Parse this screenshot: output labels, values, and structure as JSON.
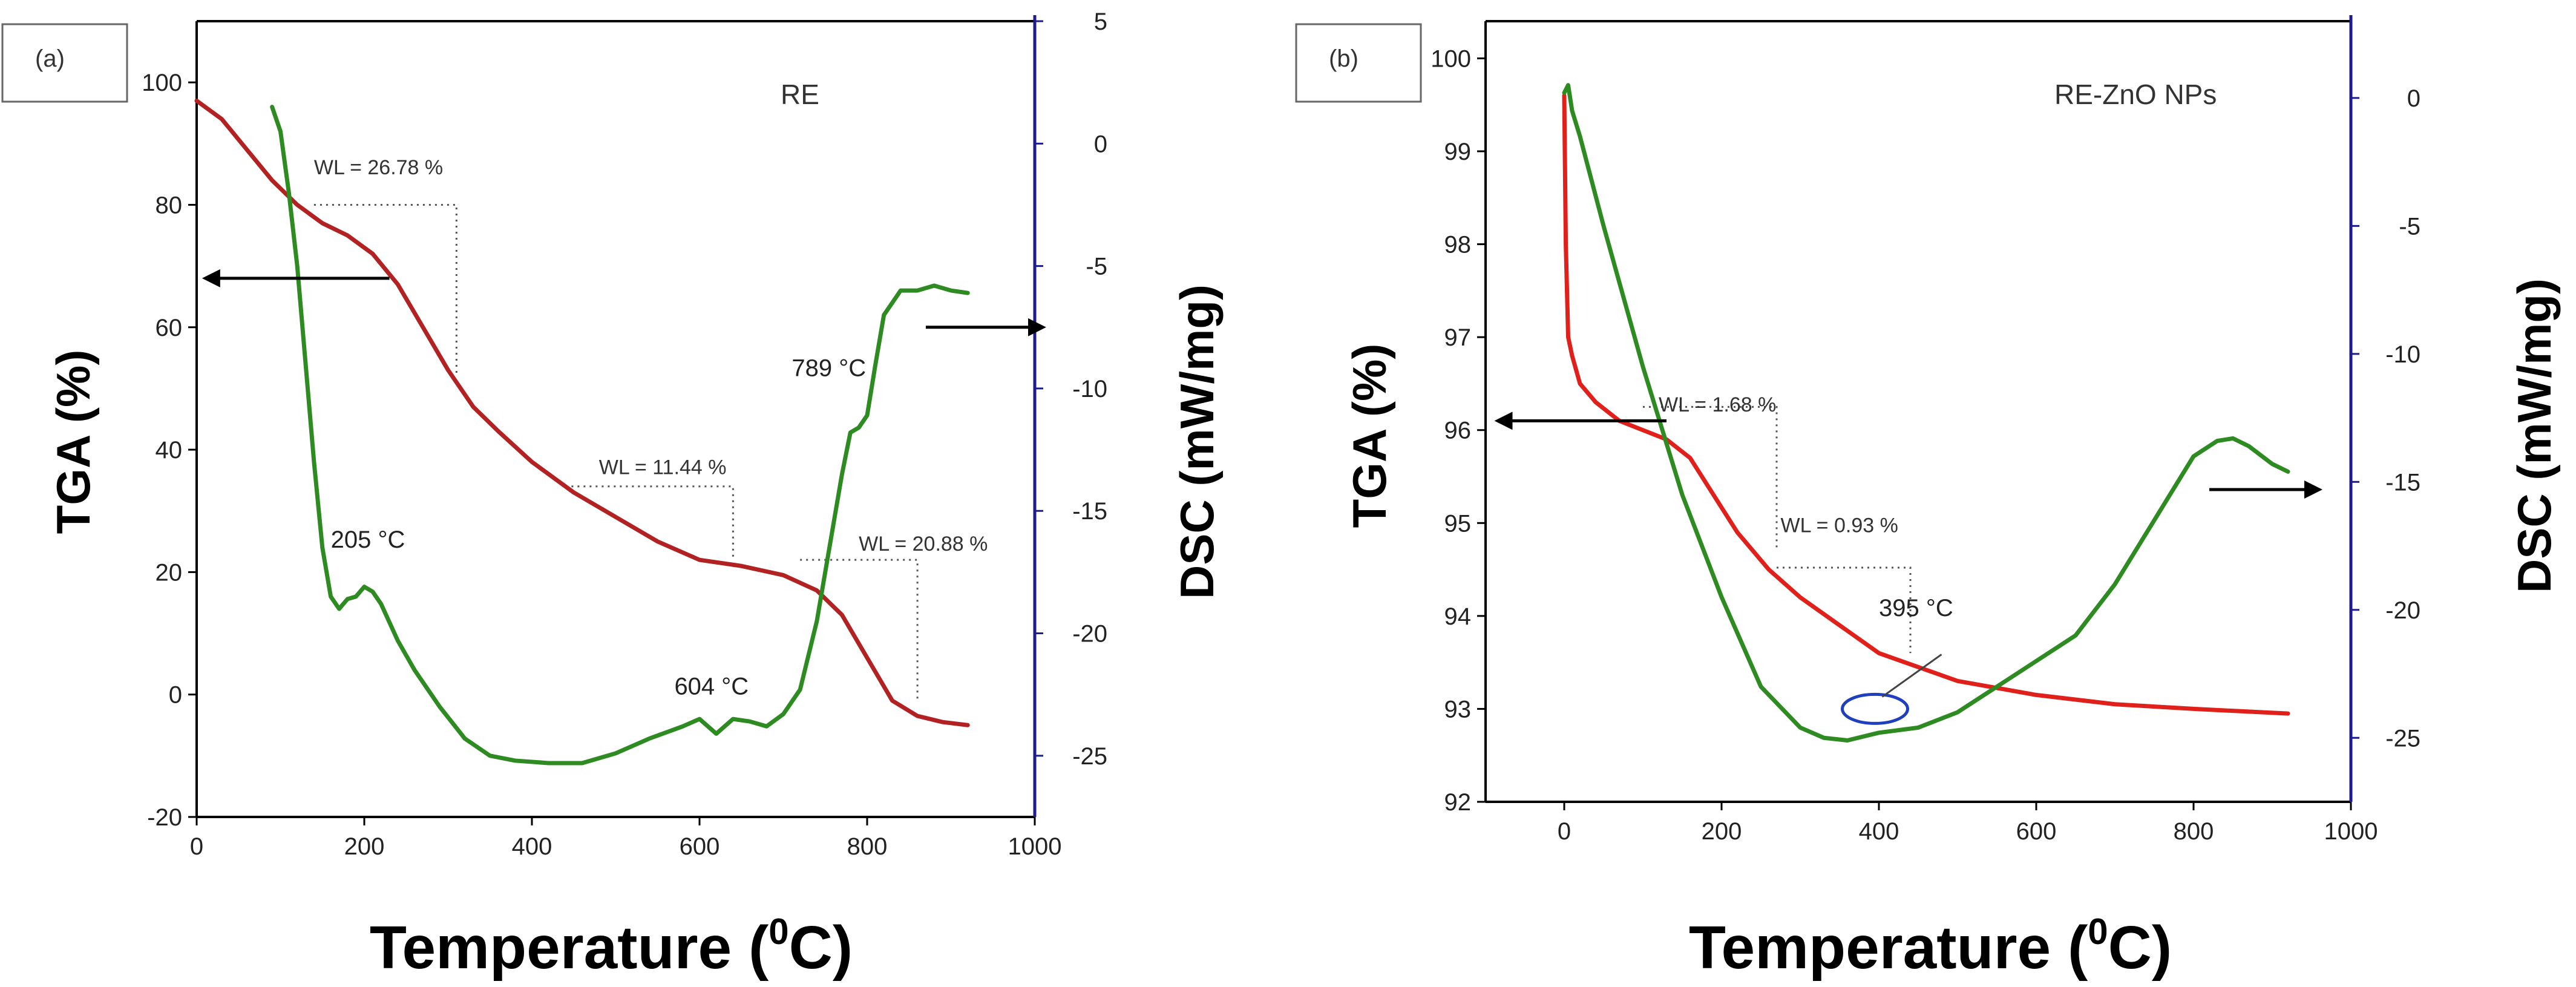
{
  "chart_data": [
    {
      "type": "line",
      "panel_label": "(a)",
      "sample": "RE",
      "xlabel": "Temperature",
      "xlabel_sup": "0",
      "xlabel_unit": "C)",
      "xlabel_prefix": "(",
      "ylabel_left": "TGA (%)",
      "ylabel_right": "DSC (mW/mg)",
      "xlim": [
        0,
        1000
      ],
      "ylim_left": [
        -20,
        110
      ],
      "ylim_right": [
        -27.5,
        5
      ],
      "xticks": [
        "0",
        "200",
        "400",
        "600",
        "800",
        "1000"
      ],
      "yticks_left": [
        "-20",
        "0",
        "20",
        "40",
        "60",
        "80",
        "100"
      ],
      "yticks_right": [
        "-25",
        "-20",
        "-15",
        "-10",
        "-5",
        "0",
        "5"
      ],
      "colors": {
        "tga": "#b22222",
        "dsc": "#2e8b22",
        "right_axis": "#1c1c8c"
      },
      "series": [
        {
          "name": "TGA",
          "axis": "left",
          "x": [
            0,
            30,
            60,
            90,
            120,
            150,
            180,
            210,
            240,
            270,
            300,
            330,
            360,
            400,
            450,
            500,
            550,
            600,
            650,
            700,
            740,
            770,
            800,
            830,
            860,
            890,
            920
          ],
          "y": [
            97,
            94,
            89,
            84,
            80,
            77,
            75,
            72,
            67,
            60,
            53,
            47,
            43,
            38,
            33,
            29,
            25,
            22,
            21,
            19.5,
            17,
            13,
            6,
            -1,
            -3.5,
            -4.5,
            -5
          ]
        },
        {
          "name": "DSC",
          "axis": "right",
          "x": [
            90,
            100,
            110,
            120,
            130,
            140,
            150,
            160,
            170,
            180,
            190,
            200,
            210,
            220,
            240,
            260,
            290,
            320,
            350,
            380,
            420,
            460,
            500,
            540,
            580,
            600,
            620,
            640,
            660,
            680,
            700,
            720,
            740,
            760,
            770,
            780,
            790,
            800,
            810,
            820,
            840,
            860,
            880,
            900,
            920
          ],
          "y": [
            1.5,
            0.5,
            -2,
            -5,
            -9,
            -13,
            -16.5,
            -18.5,
            -19,
            -18.6,
            -18.5,
            -18.1,
            -18.3,
            -18.8,
            -20.3,
            -21.5,
            -23,
            -24.3,
            -25,
            -25.2,
            -25.3,
            -25.3,
            -24.9,
            -24.3,
            -23.8,
            -23.5,
            -24.1,
            -23.5,
            -23.6,
            -23.8,
            -23.3,
            -22.3,
            -19.5,
            -15.5,
            -13.5,
            -11.8,
            -11.6,
            -11.1,
            -9,
            -7,
            -6,
            -6,
            -5.8,
            -6,
            -6.1
          ]
        }
      ],
      "annotations": [
        {
          "text": "WL = 26.78 %",
          "x": 140,
          "y": 85,
          "axis": "left"
        },
        {
          "text": "WL = 11.44 %",
          "x": 480,
          "y": 36,
          "axis": "left"
        },
        {
          "text": "WL = 20.88 %",
          "x": 790,
          "y": 23.5,
          "axis": "left"
        },
        {
          "text": "205 °C",
          "x": 160,
          "y": 24,
          "axis": "left"
        },
        {
          "text": "604 °C",
          "x": 570,
          "y": 0,
          "axis": "left"
        },
        {
          "text": "789 °C",
          "x": 710,
          "y": 52,
          "axis": "left"
        }
      ],
      "arrows": [
        {
          "direction": "left",
          "axis": "left",
          "x_from": 230,
          "x_to": 10,
          "y": 68
        },
        {
          "direction": "right",
          "axis": "right",
          "x_from": 870,
          "x_to": 1010,
          "y": -7.5
        }
      ],
      "guides": [
        {
          "x": [
            140,
            310,
            310
          ],
          "y": [
            80,
            80,
            52
          ],
          "axis": "left"
        },
        {
          "x": [
            440,
            640,
            640
          ],
          "y": [
            34,
            34,
            22
          ],
          "axis": "left"
        },
        {
          "x": [
            720,
            860,
            860
          ],
          "y": [
            22,
            22,
            -1
          ],
          "axis": "left"
        }
      ]
    },
    {
      "type": "line",
      "panel_label": "(b)",
      "sample": "RE-ZnO NPs",
      "xlabel": "Temperature",
      "xlabel_sup": "0",
      "xlabel_unit": "C)",
      "xlabel_prefix": "(",
      "ylabel_left": "TGA (%)",
      "ylabel_right": "DSC (mW/mg)",
      "xlim": [
        -100,
        1000
      ],
      "ylim_left": [
        92,
        100.4
      ],
      "ylim_right": [
        -27.5,
        3
      ],
      "xticks": [
        "0",
        "200",
        "400",
        "600",
        "800",
        "1000"
      ],
      "yticks_left": [
        "92",
        "93",
        "94",
        "95",
        "96",
        "97",
        "98",
        "99",
        "100"
      ],
      "yticks_right": [
        "-25",
        "-20",
        "-15",
        "-10",
        "-5",
        "0"
      ],
      "colors": {
        "tga": "#e0201a",
        "dsc": "#2e8b22",
        "right_axis": "#1c1c8c"
      },
      "series": [
        {
          "name": "TGA",
          "axis": "left",
          "x": [
            0,
            2,
            5,
            10,
            20,
            40,
            70,
            100,
            130,
            160,
            190,
            220,
            260,
            300,
            350,
            400,
            450,
            500,
            600,
            700,
            800,
            920
          ],
          "y": [
            99.6,
            98,
            97,
            96.8,
            96.5,
            96.3,
            96.1,
            96.0,
            95.9,
            95.7,
            95.3,
            94.9,
            94.5,
            94.2,
            93.9,
            93.6,
            93.45,
            93.3,
            93.15,
            93.05,
            93.0,
            92.95
          ]
        },
        {
          "name": "DSC",
          "axis": "right",
          "x": [
            0,
            5,
            10,
            20,
            50,
            100,
            150,
            200,
            250,
            300,
            330,
            360,
            400,
            450,
            500,
            550,
            600,
            650,
            700,
            750,
            800,
            830,
            850,
            870,
            900,
            920
          ],
          "y": [
            0.2,
            0.5,
            -0.5,
            -1.5,
            -5,
            -10.5,
            -15.5,
            -19.5,
            -23,
            -24.6,
            -25,
            -25.1,
            -24.8,
            -24.6,
            -24,
            -23,
            -22,
            -21,
            -19,
            -16.5,
            -14,
            -13.4,
            -13.3,
            -13.6,
            -14.3,
            -14.6
          ]
        }
      ],
      "annotations": [
        {
          "text": "WL = 1.68 %",
          "x": 120,
          "y": 96.2,
          "axis": "left"
        },
        {
          "text": "WL = 0.93 %",
          "x": 275,
          "y": 94.9,
          "axis": "left"
        },
        {
          "text": "395 °C",
          "x": 400,
          "y": 94.0,
          "axis": "left"
        }
      ],
      "arrows": [
        {
          "direction": "left",
          "axis": "left",
          "x_from": 130,
          "x_to": -85,
          "y": 96.1
        },
        {
          "direction": "right",
          "axis": "right",
          "x_from": 820,
          "x_to": 960,
          "y": -15.3
        }
      ],
      "guides": [
        {
          "x": [
            100,
            270,
            270
          ],
          "y": [
            96.25,
            96.25,
            94.7
          ],
          "axis": "left"
        },
        {
          "x": [
            270,
            440,
            440
          ],
          "y": [
            94.52,
            94.52,
            93.6
          ],
          "axis": "left"
        }
      ],
      "ellipse": {
        "x": 395,
        "y": 93.0,
        "axis": "left"
      }
    }
  ]
}
